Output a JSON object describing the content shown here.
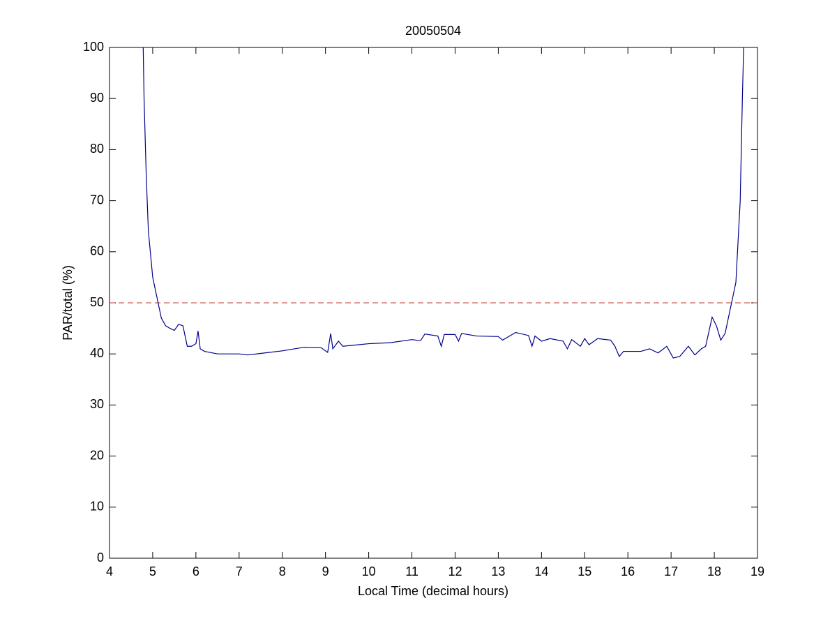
{
  "chart_data": {
    "type": "line",
    "title": "20050504",
    "x_label": "Local Time (decimal hours)",
    "y_label": "PAR/total (%)",
    "xlim": [
      4,
      19
    ],
    "ylim": [
      0,
      100
    ],
    "xticks": [
      4,
      5,
      6,
      7,
      8,
      9,
      10,
      11,
      12,
      13,
      14,
      15,
      16,
      17,
      18,
      19
    ],
    "yticks": [
      0,
      10,
      20,
      30,
      40,
      50,
      60,
      70,
      80,
      90,
      100
    ],
    "grid": false,
    "series": [
      {
        "color": "#00008b",
        "x": [
          4.78,
          4.8,
          4.85,
          4.9,
          5.0,
          5.1,
          5.2,
          5.3,
          5.4,
          5.5,
          5.6,
          5.7,
          5.8,
          5.9,
          6.0,
          6.05,
          6.1,
          6.2,
          6.5,
          7.0,
          7.2,
          7.5,
          8.0,
          8.5,
          8.9,
          9.05,
          9.12,
          9.17,
          9.3,
          9.4,
          10.0,
          10.5,
          11.0,
          11.2,
          11.3,
          11.6,
          11.68,
          11.75,
          12.0,
          12.08,
          12.15,
          12.5,
          13.0,
          13.1,
          13.4,
          13.7,
          13.78,
          13.85,
          14.0,
          14.2,
          14.5,
          14.6,
          14.7,
          14.9,
          15.0,
          15.1,
          15.3,
          15.6,
          15.7,
          15.8,
          15.9,
          16.3,
          16.5,
          16.7,
          16.9,
          17.05,
          17.2,
          17.4,
          17.55,
          17.7,
          17.8,
          17.95,
          18.05,
          18.15,
          18.25,
          18.4,
          18.5,
          18.6,
          18.65,
          18.68
        ],
        "values": [
          100,
          90,
          75,
          64,
          55,
          51,
          47,
          45.5,
          45,
          44.6,
          45.8,
          45.5,
          41.5,
          41.5,
          42,
          44.5,
          41,
          40.5,
          40,
          40,
          39.8,
          40.1,
          40.6,
          41.3,
          41.2,
          40.3,
          44,
          41,
          42.5,
          41.5,
          42,
          42.2,
          42.8,
          42.6,
          43.9,
          43.5,
          41.5,
          43.8,
          43.8,
          42.5,
          44,
          43.5,
          43.4,
          42.7,
          44.2,
          43.6,
          41.5,
          43.5,
          42.5,
          43,
          42.5,
          41,
          42.8,
          41.5,
          43,
          41.8,
          43,
          42.7,
          41.5,
          39.5,
          40.5,
          40.5,
          41,
          40.2,
          41.5,
          39.2,
          39.5,
          41.5,
          39.8,
          41,
          41.5,
          47.2,
          45.5,
          42.7,
          44,
          50,
          54,
          70,
          90,
          100
        ]
      }
    ],
    "reference_line": {
      "value": 50,
      "color": "#c0392b",
      "style": "dashed"
    }
  }
}
